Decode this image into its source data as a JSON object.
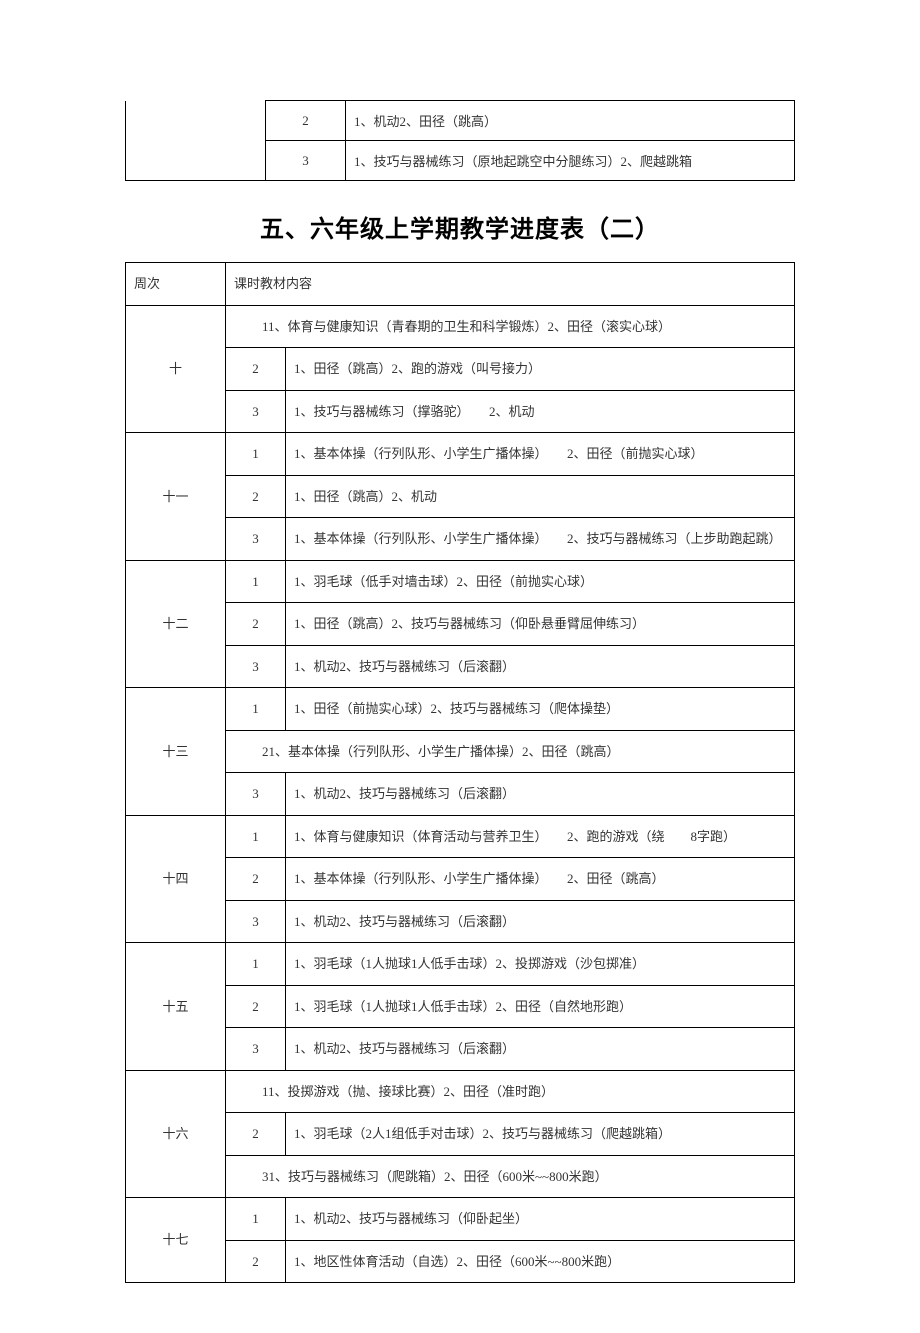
{
  "topTable": {
    "rows": [
      {
        "period": "2",
        "content": "1、机动2、田径（跳高）"
      },
      {
        "period": "3",
        "content": "1、技巧与器械练习（原地起跳空中分腿练习）2、爬越跳箱"
      }
    ]
  },
  "mainTitle": "五、六年级上学期教学进度表（二）",
  "mainTable": {
    "headers": {
      "week": "周次",
      "content": "课时教材内容"
    },
    "weeks": [
      {
        "label": "十",
        "rows": [
          {
            "type": "span",
            "content": "11、体育与健康知识（青春期的卫生和科学锻炼）2、田径（滚实心球）"
          },
          {
            "type": "normal",
            "period": "2",
            "content": "1、田径（跳高）2、跑的游戏（叫号接力）"
          },
          {
            "type": "normal",
            "period": "3",
            "content": "1、技巧与器械练习（撑骆驼）　　2、机动"
          }
        ]
      },
      {
        "label": "十一",
        "rows": [
          {
            "type": "normal",
            "period": "1",
            "content": "1、基本体操（行列队形、小学生广播体操）　　2、田径（前抛实心球）"
          },
          {
            "type": "normal",
            "period": "2",
            "content": "1、田径（跳高）2、机动"
          },
          {
            "type": "normal",
            "period": "3",
            "content": "1、基本体操（行列队形、小学生广播体操）　　2、技巧与器械练习（上步助跑起跳）"
          }
        ]
      },
      {
        "label": "十二",
        "rows": [
          {
            "type": "normal",
            "period": "1",
            "content": "1、羽毛球（低手对墙击球）2、田径（前抛实心球）"
          },
          {
            "type": "normal",
            "period": "2",
            "content": "1、田径（跳高）2、技巧与器械练习（仰卧悬垂臂屈伸练习）"
          },
          {
            "type": "normal",
            "period": "3",
            "content": "1、机动2、技巧与器械练习（后滚翻）"
          }
        ]
      },
      {
        "label": "十三",
        "rows": [
          {
            "type": "normal",
            "period": "1",
            "content": "1、田径（前抛实心球）2、技巧与器械练习（爬体操垫）"
          },
          {
            "type": "span",
            "content": "21、基本体操（行列队形、小学生广播体操）2、田径（跳高）"
          },
          {
            "type": "normal",
            "period": "3",
            "content": "1、机动2、技巧与器械练习（后滚翻）"
          }
        ]
      },
      {
        "label": "十四",
        "rows": [
          {
            "type": "normal",
            "period": "1",
            "content": "1、体育与健康知识（体育活动与营养卫生）　　2、跑的游戏（绕　　8字跑）"
          },
          {
            "type": "normal",
            "period": "2",
            "content": "1、基本体操（行列队形、小学生广播体操）　　2、田径（跳高）"
          },
          {
            "type": "normal",
            "period": "3",
            "content": "1、机动2、技巧与器械练习（后滚翻）"
          }
        ]
      },
      {
        "label": "十五",
        "rows": [
          {
            "type": "normal",
            "period": "1",
            "content": "1、羽毛球（1人抛球1人低手击球）2、投掷游戏（沙包掷准）"
          },
          {
            "type": "normal",
            "period": "2",
            "content": "1、羽毛球（1人抛球1人低手击球）2、田径（自然地形跑）"
          },
          {
            "type": "normal",
            "period": "3",
            "content": "1、机动2、技巧与器械练习（后滚翻）"
          }
        ]
      },
      {
        "label": "十六",
        "rows": [
          {
            "type": "span",
            "content": "11、投掷游戏（抛、接球比赛）2、田径（准时跑）"
          },
          {
            "type": "normal",
            "period": "2",
            "content": "1、羽毛球（2人1组低手对击球）2、技巧与器械练习（爬越跳箱）"
          },
          {
            "type": "span",
            "content": "31、技巧与器械练习（爬跳箱）2、田径（600米~~800米跑）"
          }
        ]
      },
      {
        "label": "十七",
        "rows": [
          {
            "type": "normal",
            "period": "1",
            "content": "1、机动2、技巧与器械练习（仰卧起坐）"
          },
          {
            "type": "normal",
            "period": "2",
            "content": "1、地区性体育活动（自选）2、田径（600米~~800米跑）"
          }
        ]
      }
    ]
  }
}
